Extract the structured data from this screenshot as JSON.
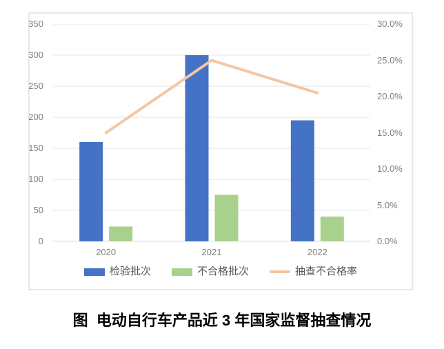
{
  "caption": "图  电动自行车产品近 3 年国家监督抽查情况",
  "colors": {
    "bar_blue": "#4472C4",
    "bar_green": "#A9D18E",
    "line_peach": "#F5C6A2",
    "gridline": "#e4e4e4",
    "baseline": "#c3c3c3",
    "axis_text": "#7f7f7f",
    "legend_text": "#595959",
    "panel_border": "#e7e7e7"
  },
  "chart_data": {
    "type": "combo",
    "title": "",
    "categories": [
      "2020",
      "2021",
      "2022"
    ],
    "series": [
      {
        "name": "检验批次",
        "type": "bar",
        "axis": "left",
        "color": "#4472C4",
        "values": [
          160,
          300,
          195
        ]
      },
      {
        "name": "不合格批次",
        "type": "bar",
        "axis": "left",
        "color": "#A9D18E",
        "values": [
          24,
          75,
          40
        ]
      },
      {
        "name": "抽查不合格率",
        "type": "line",
        "axis": "right",
        "color": "#F5C6A2",
        "values": [
          15.0,
          25.0,
          20.5
        ],
        "unit": "%"
      }
    ],
    "axis_left": {
      "min": 0,
      "max": 350,
      "step": 50,
      "tick_labels": [
        "0",
        "50",
        "100",
        "150",
        "200",
        "250",
        "300",
        "350"
      ]
    },
    "axis_right": {
      "min": 0,
      "max": 30,
      "step": 5,
      "tick_labels": [
        "0.0%",
        "5.0%",
        "10.0%",
        "15.0%",
        "20.0%",
        "25.0%",
        "30.0%"
      ]
    },
    "grid": true,
    "legend_position": "bottom"
  }
}
